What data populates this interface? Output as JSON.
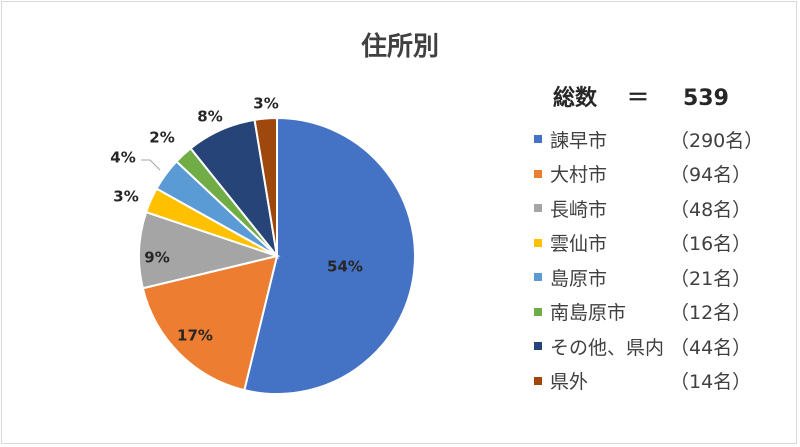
{
  "chart_data": {
    "type": "pie",
    "title": "住所別",
    "total_label": "総数",
    "total_eq": "＝",
    "total_value": "539",
    "slices": [
      {
        "name": "諫早市",
        "count": "（290名）",
        "value": 290,
        "label": "54%",
        "color": "#4472C4",
        "label_color": "#262626"
      },
      {
        "name": "大村市",
        "count": "（94名）",
        "value": 94,
        "label": "17%",
        "color": "#ED7D31",
        "label_color": "#262626"
      },
      {
        "name": "長崎市",
        "count": "（48名）",
        "value": 48,
        "label": "9%",
        "color": "#A5A5A5",
        "label_color": "#262626"
      },
      {
        "name": "雲仙市",
        "count": "（16名）",
        "value": 16,
        "label": "3%",
        "color": "#FFC000",
        "label_color": "#262626"
      },
      {
        "name": "島原市",
        "count": "（21名）",
        "value": 21,
        "label": "4%",
        "color": "#5B9BD5",
        "label_color": "#262626"
      },
      {
        "name": "南島原市",
        "count": "（12名）",
        "value": 12,
        "label": "2%",
        "color": "#70AD47",
        "label_color": "#262626"
      },
      {
        "name": "その他、県内",
        "count": "（44名）",
        "value": 44,
        "label": "8%",
        "color": "#264478",
        "label_color": "#262626"
      },
      {
        "name": "県外",
        "count": "（14名）",
        "value": 14,
        "label": "3%",
        "color": "#9E480E",
        "label_color": "#262626"
      }
    ],
    "legend_position": "right"
  }
}
